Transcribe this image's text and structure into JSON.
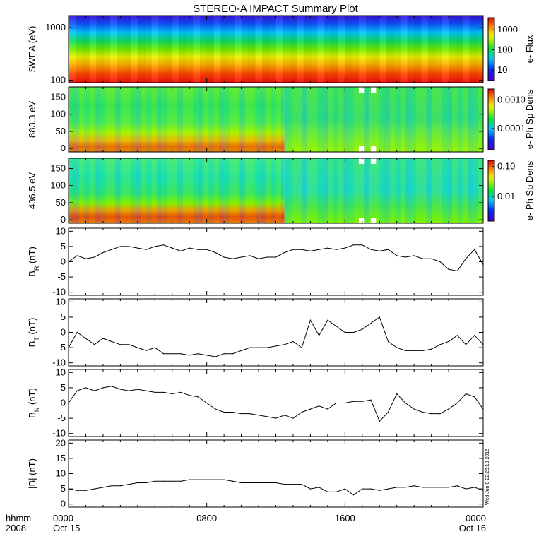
{
  "title": "STEREO-A IMPACT Summary Plot",
  "stamp": "Wed Jun  8 22:26:13 2016",
  "colors": {
    "frame": "#000000",
    "line": "#000000",
    "gap": "#ffffff"
  },
  "xaxis": {
    "range_hours": [
      0,
      24
    ],
    "ticks": [
      0,
      8,
      16,
      24
    ],
    "tick_labels": [
      "0000",
      "0800",
      "1600",
      "0000"
    ],
    "minor_step_hours": 1,
    "date_labels": [
      "Oct 15",
      "",
      "",
      "Oct 16"
    ],
    "row_label_time": "hhmm",
    "row_label_year": "2008"
  },
  "chart_data": [
    {
      "name": "swea-spectrogram",
      "type": "heatmap",
      "ylabel": "SWEA (eV)",
      "ylog": true,
      "ylim": [
        90,
        1700
      ],
      "yticks": [
        100,
        1000
      ],
      "ytick_labels": [
        "100",
        "1000"
      ],
      "colorbar": {
        "label": "e- Flux",
        "log": true,
        "range": [
          3,
          4000
        ],
        "ticks": [
          10,
          100,
          1000
        ],
        "tick_labels": [
          "10",
          "100",
          "1000"
        ]
      }
    },
    {
      "name": "pad-883eV",
      "type": "heatmap",
      "ylabel": "883.3 eV",
      "ylim": [
        -10,
        180
      ],
      "yticks": [
        0,
        50,
        100,
        150
      ],
      "ytick_labels": [
        "0",
        "50",
        "100",
        "150"
      ],
      "colorbar": {
        "label": "e- Ph Sp Dens",
        "log": true,
        "range": [
          1.8e-05,
          0.0024
        ],
        "ticks": [
          0.0001,
          0.001
        ],
        "tick_labels": [
          "0.0001",
          "0.0010"
        ]
      },
      "data_gaps_hours": [
        [
          16.8,
          17.1
        ],
        [
          17.5,
          17.8
        ]
      ]
    },
    {
      "name": "pad-436eV",
      "type": "heatmap",
      "ylabel": "436.5 eV",
      "ylim": [
        -10,
        180
      ],
      "yticks": [
        0,
        50,
        100,
        150
      ],
      "ytick_labels": [
        "0",
        "50",
        "100",
        "150"
      ],
      "colorbar": {
        "label": "e- Ph Sp Dens",
        "log": true,
        "range": [
          0.0015,
          0.16
        ],
        "ticks": [
          0.01,
          0.1
        ],
        "tick_labels": [
          "0.01",
          "0.10"
        ]
      },
      "data_gaps_hours": [
        [
          16.8,
          17.1
        ],
        [
          17.5,
          17.8
        ]
      ]
    },
    {
      "name": "br",
      "type": "line",
      "ylabel": "BR (nT)",
      "ylabel_main": "B",
      "ylabel_sub": "R",
      "ylabel_unit": " (nT)",
      "ylim": [
        -11,
        11
      ],
      "yticks": [
        -10,
        -5,
        0,
        5,
        10
      ],
      "ytick_labels": [
        "-10",
        "-5",
        "0",
        "5",
        "10"
      ],
      "x": [
        0,
        0.5,
        1,
        1.5,
        2,
        2.5,
        3,
        3.5,
        4,
        4.5,
        5,
        5.5,
        6,
        6.5,
        7,
        7.5,
        8,
        8.5,
        9,
        9.5,
        10,
        10.5,
        11,
        11.5,
        12,
        12.5,
        13,
        13.5,
        14,
        14.5,
        15,
        15.5,
        16,
        16.5,
        17,
        17.5,
        18,
        18.5,
        19,
        19.5,
        20,
        20.5,
        21,
        21.5,
        22,
        22.5,
        23,
        23.5,
        24
      ],
      "values": [
        0,
        2,
        1,
        1.5,
        3,
        4,
        5,
        5,
        4.5,
        4,
        5,
        5.5,
        4.5,
        3.5,
        4.5,
        4,
        4,
        3,
        1.5,
        1,
        1.5,
        2,
        1,
        1.5,
        1.5,
        3,
        4,
        4,
        3.5,
        4,
        4.5,
        4,
        4.5,
        5.5,
        5.5,
        4,
        3.5,
        4,
        2,
        1.5,
        2,
        1,
        1,
        0,
        -2.5,
        -3,
        1,
        4,
        -1
      ]
    },
    {
      "name": "bt",
      "type": "line",
      "ylabel": "BT (nT)",
      "ylabel_main": "B",
      "ylabel_sub": "T",
      "ylabel_unit": " (nT)",
      "ylim": [
        -11,
        11
      ],
      "yticks": [
        -10,
        -5,
        0,
        5,
        10
      ],
      "ytick_labels": [
        "-10",
        "-5",
        "0",
        "5",
        "10"
      ],
      "x": [
        0,
        0.5,
        1,
        1.5,
        2,
        2.5,
        3,
        3.5,
        4,
        4.5,
        5,
        5.5,
        6,
        6.5,
        7,
        7.5,
        8,
        8.5,
        9,
        9.5,
        10,
        10.5,
        11,
        11.5,
        12,
        12.5,
        13,
        13.5,
        14,
        14.5,
        15,
        15.5,
        16,
        16.5,
        17,
        17.5,
        18,
        18.5,
        19,
        19.5,
        20,
        20.5,
        21,
        21.5,
        22,
        22.5,
        23,
        23.5,
        24
      ],
      "values": [
        -5,
        0,
        -2,
        -4,
        -2,
        -3,
        -4,
        -4,
        -5,
        -6,
        -5,
        -7,
        -7,
        -7,
        -7.5,
        -7,
        -7.5,
        -8,
        -7,
        -7,
        -6,
        -5,
        -5,
        -5,
        -4.5,
        -4,
        -3,
        -5,
        4,
        -1,
        4,
        2,
        0,
        0,
        1,
        3,
        5,
        -3,
        -5,
        -6,
        -6,
        -6,
        -5.5,
        -4,
        -3,
        -1,
        -4,
        -1,
        -4
      ]
    },
    {
      "name": "bn",
      "type": "line",
      "ylabel": "BN (nT)",
      "ylabel_main": "B",
      "ylabel_sub": "N",
      "ylabel_unit": " (nT)",
      "ylim": [
        -11,
        11
      ],
      "yticks": [
        -10,
        -5,
        0,
        5,
        10
      ],
      "ytick_labels": [
        "-10",
        "-5",
        "0",
        "5",
        "10"
      ],
      "x": [
        0,
        0.5,
        1,
        1.5,
        2,
        2.5,
        3,
        3.5,
        4,
        4.5,
        5,
        5.5,
        6,
        6.5,
        7,
        7.5,
        8,
        8.5,
        9,
        9.5,
        10,
        10.5,
        11,
        11.5,
        12,
        12.5,
        13,
        13.5,
        14,
        14.5,
        15,
        15.5,
        16,
        16.5,
        17,
        17.5,
        18,
        18.5,
        19,
        19.5,
        20,
        20.5,
        21,
        21.5,
        22,
        22.5,
        23,
        23.5,
        24
      ],
      "values": [
        0,
        4,
        5,
        4,
        5,
        5.5,
        4.5,
        4,
        4.5,
        4,
        3.5,
        3.5,
        3,
        3.5,
        2.5,
        2,
        0,
        -2,
        -3,
        -3,
        -3.5,
        -3.5,
        -4,
        -4.5,
        -5,
        -4,
        -5,
        -3,
        -2,
        -1,
        -2,
        0,
        0,
        0.5,
        0.5,
        1,
        -6,
        -3,
        3,
        0,
        -2,
        -3,
        -3.5,
        -3.5,
        -2,
        0,
        3,
        2,
        -2
      ]
    },
    {
      "name": "bmag",
      "type": "line",
      "ylabel": "|B| (nT)",
      "ylabel_main": "|B|",
      "ylabel_sub": "",
      "ylabel_unit": " (nT)",
      "ylim": [
        -1,
        21
      ],
      "yticks": [
        0,
        5,
        10,
        15,
        20
      ],
      "ytick_labels": [
        "0",
        "5",
        "10",
        "15",
        "20"
      ],
      "x": [
        0,
        0.5,
        1,
        1.5,
        2,
        2.5,
        3,
        3.5,
        4,
        4.5,
        5,
        5.5,
        6,
        6.5,
        7,
        7.5,
        8,
        8.5,
        9,
        9.5,
        10,
        10.5,
        11,
        11.5,
        12,
        12.5,
        13,
        13.5,
        14,
        14.5,
        15,
        15.5,
        16,
        16.5,
        17,
        17.5,
        18,
        18.5,
        19,
        19.5,
        20,
        20.5,
        21,
        21.5,
        22,
        22.5,
        23,
        23.5,
        24
      ],
      "values": [
        5,
        4.5,
        4.5,
        5,
        5.5,
        6,
        6,
        6.5,
        7,
        7,
        7.5,
        7.5,
        7.5,
        7.5,
        8,
        8,
        8,
        8,
        8,
        7.5,
        7,
        7,
        7,
        7,
        7,
        6.5,
        6.5,
        6.5,
        5,
        5.5,
        4,
        4,
        5,
        3,
        5,
        5,
        4.5,
        5,
        5.5,
        5.5,
        6,
        5.5,
        5.5,
        5.5,
        5.5,
        6,
        5,
        5.5,
        4.5
      ]
    }
  ]
}
